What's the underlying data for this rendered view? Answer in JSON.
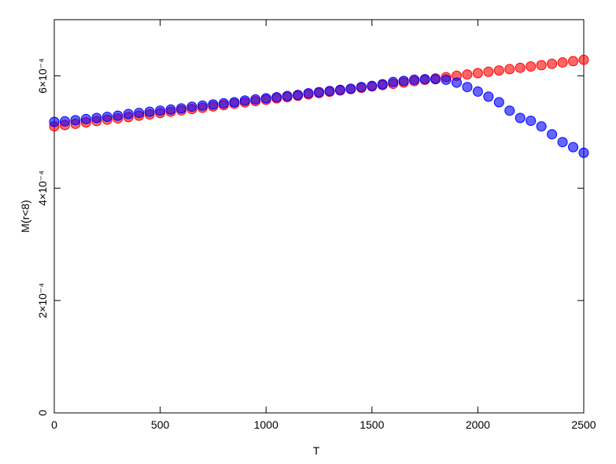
{
  "chart_data": {
    "type": "scatter",
    "x_label": "T",
    "y_label": "M(r<8)",
    "x": [
      0,
      50,
      100,
      150,
      200,
      250,
      300,
      350,
      400,
      450,
      500,
      550,
      600,
      650,
      700,
      750,
      800,
      850,
      900,
      950,
      1000,
      1050,
      1100,
      1150,
      1200,
      1250,
      1300,
      1350,
      1400,
      1450,
      1500,
      1550,
      1600,
      1650,
      1700,
      1750,
      1800,
      1850,
      1900,
      1950,
      2000,
      2050,
      2100,
      2150,
      2200,
      2250,
      2300,
      2350,
      2400,
      2450,
      2500
    ],
    "series": [
      {
        "color": "#ff0000",
        "values": [
          0.00051,
          0.0005124,
          0.0005147,
          0.0005171,
          0.0005195,
          0.0005219,
          0.0005242,
          0.0005266,
          0.000529,
          0.0005313,
          0.0005337,
          0.0005361,
          0.0005384,
          0.0005408,
          0.0005432,
          0.0005456,
          0.0005479,
          0.0005503,
          0.0005527,
          0.000555,
          0.0005574,
          0.0005598,
          0.0005621,
          0.0005645,
          0.0005669,
          0.0005693,
          0.0005716,
          0.000574,
          0.0005764,
          0.0005787,
          0.0005811,
          0.0005835,
          0.0005858,
          0.0005882,
          0.0005906,
          0.000593,
          0.0005953,
          0.0005977,
          0.0006001,
          0.0006024,
          0.0006048,
          0.0006072,
          0.0006095,
          0.0006119,
          0.0006143,
          0.0006167,
          0.000619,
          0.0006214,
          0.0006238,
          0.0006261,
          0.0006285
        ]
      },
      {
        "color": "#0000ff",
        "values": [
          0.000518,
          0.000519,
          0.000521,
          0.000523,
          0.000525,
          0.000527,
          0.000529,
          0.000532,
          0.000534,
          0.000536,
          0.000538,
          0.00054,
          0.000542,
          0.000545,
          0.000547,
          0.000549,
          0.000551,
          0.000553,
          0.000556,
          0.000558,
          0.00056,
          0.000562,
          0.000564,
          0.000566,
          0.000569,
          0.000571,
          0.000573,
          0.000575,
          0.000577,
          0.00058,
          0.000582,
          0.000585,
          0.000589,
          0.000591,
          0.000593,
          0.000594,
          0.000594,
          0.000593,
          0.000588,
          0.00058,
          0.000572,
          0.000563,
          0.000553,
          0.000538,
          0.000525,
          0.00052,
          0.00051,
          0.000496,
          0.000482,
          0.000473,
          0.000463
        ]
      }
    ],
    "xlim": [
      0,
      2500
    ],
    "xticks": [
      0,
      500,
      1000,
      1500,
      2000,
      2500
    ],
    "ylim": [
      0,
      0.0007
    ],
    "yticks": [
      0,
      {
        "value": 0.0002,
        "label": "2×10⁻⁴"
      },
      {
        "value": 0.0004,
        "label": "4×10⁻⁴"
      },
      {
        "value": 0.0006,
        "label": "6×10⁻⁴"
      }
    ]
  }
}
